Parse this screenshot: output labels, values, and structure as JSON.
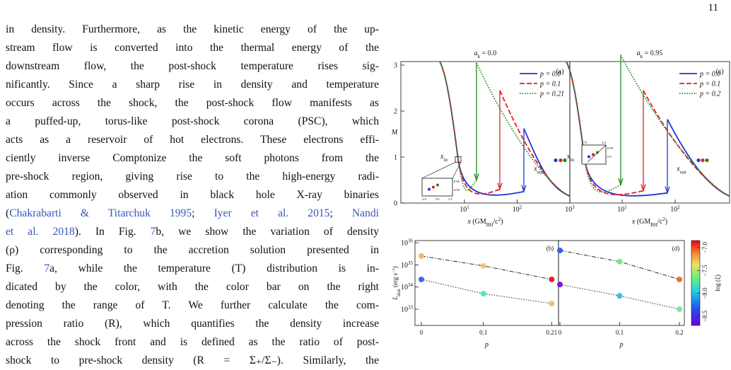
{
  "page_number": "11",
  "text_lines": [
    [
      {
        "text": "in density. Furthermore, as the kinetic energy of the up-"
      }
    ],
    [
      {
        "text": "stream flow is converted into the thermal energy of the"
      }
    ],
    [
      {
        "text": "downstream flow, the post-shock temperature rises sig-"
      }
    ],
    [
      {
        "text": "nificantly. Since a sharp rise in density and temperature"
      }
    ],
    [
      {
        "text": "occurs across the shock, the post-shock flow manifests as"
      }
    ],
    [
      {
        "text": "a puffed-up, torus-like post-shock corona (PSC), which"
      }
    ],
    [
      {
        "text": "acts as a reservoir of hot electrons. These electrons effi-"
      }
    ],
    [
      {
        "text": "ciently inverse Comptonize the soft photons from the"
      }
    ],
    [
      {
        "text": "pre-shock region, giving rise to the high-energy radi-"
      }
    ],
    [
      {
        "text": "ation commonly observed in black hole X-ray binaries"
      }
    ],
    [
      {
        "text": "("
      },
      {
        "text": "Chakrabarti & Titarchuk 1995",
        "link": true
      },
      {
        "text": "; "
      },
      {
        "text": "Iyer et al. 2015",
        "link": true
      },
      {
        "text": "; "
      },
      {
        "text": "Nandi",
        "link": true
      }
    ],
    [
      {
        "text": "et al. 2018",
        "link": true
      },
      {
        "text": "). In Fig. "
      },
      {
        "text": "7",
        "link": true
      },
      {
        "text": "b, we show the variation of density"
      }
    ],
    [
      {
        "text": "(ρ) corresponding to the accretion solution presented in"
      }
    ],
    [
      {
        "text": "Fig. "
      },
      {
        "text": "7",
        "link": true
      },
      {
        "text": "a, while the temperature (T) distribution is in-"
      }
    ],
    [
      {
        "text": "dicated by the color, with the color bar on the right"
      }
    ],
    [
      {
        "text": "denoting the range of T. We further calculate the com-"
      }
    ],
    [
      {
        "text": "pression ratio (R), which quantifies the density increase"
      }
    ],
    [
      {
        "text": "across the shock front and is defined as the ratio of post-"
      }
    ],
    [
      {
        "text": "shock to pre-shock density (R = Σ₊/Σ₋). Similarly, the"
      }
    ]
  ],
  "figure": {
    "top_panels": [
      {
        "title": [
          {
            "text": "a",
            "italic": true
          },
          {
            "text": "k",
            "sub": true
          },
          {
            "text": " = 0.0"
          }
        ],
        "label": "(a)",
        "ylabel": "M",
        "yticks": [
          0,
          1,
          2,
          3
        ],
        "xticks": [
          {
            "value": 10,
            "label": "10",
            "exponent": "1"
          },
          {
            "value": 100,
            "label": "10",
            "exponent": "2"
          },
          {
            "value": 1000,
            "label": "10",
            "exponent": "3"
          }
        ],
        "xlabel": [
          {
            "text": "x",
            "italic": true
          },
          {
            "text": " (GM"
          },
          {
            "text": "BH",
            "sub": true
          },
          {
            "text": "/c"
          },
          {
            "text": "2",
            "sup": true
          },
          {
            "text": ")"
          }
        ],
        "x_in": [
          {
            "text": "x",
            "italic": true
          },
          {
            "text": "in",
            "sub": true
          }
        ],
        "x_out": [
          {
            "text": "x",
            "italic": true
          },
          {
            "text": "out",
            "sub": true
          }
        ],
        "legend": [
          {
            "name": "p = 0.0",
            "color": "#1f35d8",
            "dash": "solid"
          },
          {
            "name": "p = 0.1",
            "color": "#e02020",
            "dash": "dashed"
          },
          {
            "name": "p = 0.21",
            "color": "#1a8a1a",
            "dash": "dotted"
          }
        ],
        "inset_labels": [
          "4.8",
          "5.0",
          "5.2",
          "0.96",
          "0.90"
        ]
      },
      {
        "title": [
          {
            "text": "a",
            "italic": true
          },
          {
            "text": "k",
            "sub": true
          },
          {
            "text": " = 0.95"
          }
        ],
        "label": "(c)",
        "xticks": [
          {
            "value": 10,
            "label": "10",
            "exponent": "1"
          },
          {
            "value": 100,
            "label": "10",
            "exponent": "2"
          }
        ],
        "xlabel": [
          {
            "text": "x",
            "italic": true
          },
          {
            "text": " (GM"
          },
          {
            "text": "BH",
            "sub": true
          },
          {
            "text": "/c"
          },
          {
            "text": "2",
            "sup": true
          },
          {
            "text": ")"
          }
        ],
        "x_in": [
          {
            "text": "x",
            "italic": true
          },
          {
            "text": "in",
            "sub": true
          }
        ],
        "x_out": [
          {
            "text": "x",
            "italic": true
          },
          {
            "text": "out",
            "sub": true
          }
        ],
        "legend": [
          {
            "name": "p = 0.0",
            "color": "#1f35d8",
            "dash": "solid"
          },
          {
            "name": "p = 0.1",
            "color": "#e02020",
            "dash": "dashed"
          },
          {
            "name": "p = 0.2",
            "color": "#1a8a1a",
            "dash": "dotted"
          }
        ],
        "inset_labels": [
          "1.75",
          "2.0",
          "0.98",
          "0.9"
        ]
      }
    ],
    "bottom_panels": [
      {
        "label": "(b)",
        "xlabel": "p",
        "ylabel": [
          {
            "text": "L",
            "italic": true
          },
          {
            "text": "disk",
            "sub": true
          },
          {
            "text": " (erg s"
          },
          {
            "text": "−1",
            "sup": true
          },
          {
            "text": ")"
          }
        ],
        "yticks": [
          {
            "value": 1e+33,
            "label": "10",
            "exponent": "33"
          },
          {
            "value": 1e+34,
            "label": "10",
            "exponent": "34"
          },
          {
            "value": 1e+35,
            "label": "10",
            "exponent": "35"
          },
          {
            "value": 1e+36,
            "label": "10",
            "exponent": "36"
          }
        ],
        "xticks": [
          0,
          0.1,
          0.21
        ],
        "series": [
          {
            "x": [
              0,
              0.1,
              0.21
            ],
            "values": [
              2.5e+35,
              9e+34,
              2.2e+34
            ],
            "colors": [
              "#f7b865",
              "#f6c27c",
              "#e8202a"
            ],
            "dash": "dashdot"
          },
          {
            "x": [
              0,
              0.1,
              0.21
            ],
            "values": [
              2.2e+34,
              5e+33,
              1.8e+33
            ],
            "colors": [
              "#3a6af0",
              "#4ee8c8",
              "#e8c860"
            ],
            "dash": "dotted"
          }
        ]
      },
      {
        "label": "(d)",
        "xlabel": "p",
        "xticks": [
          0,
          0.1,
          0.2
        ],
        "series": [
          {
            "x": [
              0,
              0.1,
              0.2
            ],
            "values": [
              4.5e+35,
              1.4e+35,
              2.2e+34
            ],
            "colors": [
              "#3460f0",
              "#7ee87a",
              "#f07030"
            ],
            "dash": "dashdot"
          },
          {
            "x": [
              0,
              0.1,
              0.2
            ],
            "values": [
              1.3e+34,
              4e+33,
              1e+33
            ],
            "colors": [
              "#7020e0",
              "#30c0e8",
              "#80e8a0"
            ],
            "dash": "dotted"
          }
        ]
      }
    ],
    "colorbar": {
      "label": [
        {
          "text": "log (ξ)"
        }
      ],
      "ticks": [
        {
          "value": -8.5,
          "label": "−8.5"
        },
        {
          "value": -8.0,
          "label": "−8.0"
        },
        {
          "value": -7.5,
          "label": "−7.5"
        },
        {
          "value": -7.0,
          "label": "−7.0"
        }
      ]
    }
  }
}
